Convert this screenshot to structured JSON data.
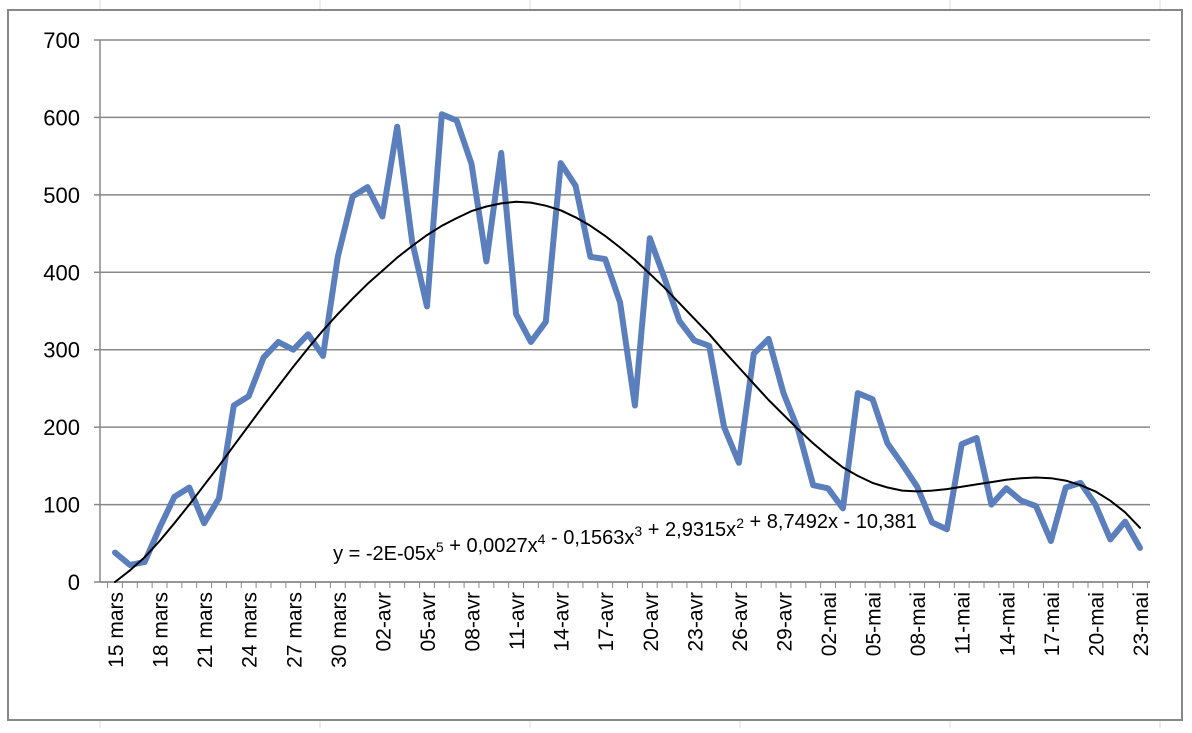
{
  "chart_data": {
    "type": "line",
    "title": "",
    "xlabel": "",
    "ylabel": "",
    "ylim": [
      0,
      700
    ],
    "yticks": [
      "0",
      "100",
      "200",
      "300",
      "400",
      "500",
      "600",
      "700"
    ],
    "grid": true,
    "legend": "none",
    "x_tick_labels": [
      "15 mars",
      "18 mars",
      "21 mars",
      "24 mars",
      "27 mars",
      "30 mars",
      "02-avr",
      "05-avr",
      "08-avr",
      "11-avr",
      "14-avr",
      "17-avr",
      "20-avr",
      "23-avr",
      "26-avr",
      "29-avr",
      "02-mai",
      "05-mai",
      "08-mai",
      "11-mai",
      "14-mai",
      "17-mai",
      "20-mai",
      "23-mai"
    ],
    "x": [
      "15 mars",
      "16 mars",
      "17 mars",
      "18 mars",
      "19 mars",
      "20 mars",
      "21 mars",
      "22 mars",
      "23 mars",
      "24 mars",
      "25 mars",
      "26 mars",
      "27 mars",
      "28 mars",
      "29 mars",
      "30 mars",
      "31 mars",
      "01-avr",
      "02-avr",
      "03-avr",
      "04-avr",
      "05-avr",
      "06-avr",
      "07-avr",
      "08-avr",
      "09-avr",
      "10-avr",
      "11-avr",
      "12-avr",
      "13-avr",
      "14-avr",
      "15-avr",
      "16-avr",
      "17-avr",
      "18-avr",
      "19-avr",
      "20-avr",
      "21-avr",
      "22-avr",
      "23-avr",
      "24-avr",
      "25-avr",
      "26-avr",
      "27-avr",
      "28-avr",
      "29-avr",
      "30-avr",
      "01-mai",
      "02-mai",
      "03-mai",
      "04-mai",
      "05-mai",
      "06-mai",
      "07-mai",
      "08-mai",
      "09-mai",
      "10-mai",
      "11-mai",
      "12-mai",
      "13-mai",
      "14-mai",
      "15-mai",
      "16-mai",
      "17-mai",
      "18-mai",
      "19-mai",
      "20-mai",
      "21-mai",
      "22-mai",
      "23-mai"
    ],
    "series": [
      {
        "color": "#5B7FBD",
        "values": [
          38,
          22,
          26,
          70,
          110,
          122,
          76,
          108,
          228,
          240,
          290,
          310,
          300,
          320,
          292,
          420,
          498,
          510,
          472,
          588,
          440,
          356,
          604,
          596,
          540,
          414,
          554,
          346,
          310,
          336,
          541,
          512,
          420,
          417,
          361,
          228,
          444,
          392,
          337,
          312,
          305,
          200,
          154,
          295,
          314,
          244,
          196,
          125,
          121,
          95,
          244,
          236,
          179,
          152,
          123,
          77,
          68,
          178,
          186,
          100,
          121,
          105,
          98,
          53,
          122,
          128,
          100,
          55,
          78,
          44
        ]
      },
      {
        "color": "#000000",
        "trendline": "polynomial-5",
        "values": [
          0,
          15,
          32,
          53,
          76,
          100,
          125,
          150,
          176,
          202,
          228,
          253,
          278,
          302,
          325,
          346,
          366,
          385,
          402,
          419,
          434,
          448,
          460,
          470,
          479,
          485,
          489,
          491,
          490,
          486,
          480,
          471,
          460,
          447,
          432,
          416,
          398,
          380,
          360,
          340,
          320,
          298,
          277,
          256,
          235,
          216,
          197,
          179,
          163,
          148,
          137,
          128,
          122,
          118,
          117,
          118,
          120,
          123,
          126,
          129,
          132,
          134,
          135,
          134,
          131,
          125,
          117,
          105,
          90,
          70
        ]
      }
    ],
    "annotation": {
      "segments": [
        {
          "text": "y = -2E-05x",
          "sup": "5"
        },
        {
          "text": " + 0,0027x",
          "sup": "4"
        },
        {
          "text": " - 0,1563x",
          "sup": "3"
        },
        {
          "text": " + 2,9315x",
          "sup": "2"
        },
        {
          "text": " + 8,7492x - 10,381",
          "sup": ""
        }
      ]
    }
  }
}
